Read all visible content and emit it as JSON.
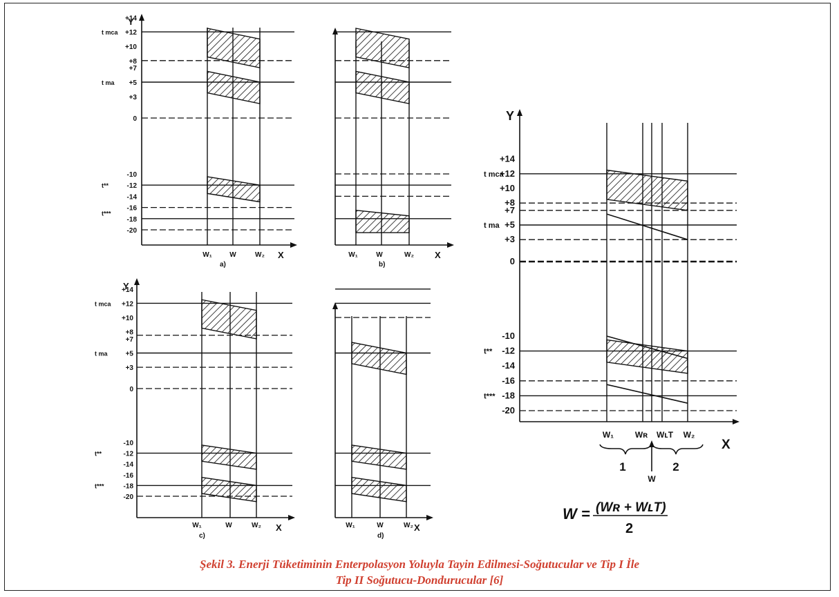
{
  "panels": [
    {
      "id": "a",
      "panel_label": "a)",
      "y_axis_label": "Y",
      "x_axis_label": "X",
      "y_ticks": [
        "+14",
        "+12",
        "+10",
        "+8",
        "+7",
        "+5",
        "+3",
        "0",
        "-10",
        "-12",
        "-14",
        "-16",
        "-18",
        "-20"
      ],
      "x_ticks": [
        "W₁",
        "W",
        "W₂"
      ],
      "level_labels": [
        "t mca",
        "t ma",
        "t**",
        "t***"
      ]
    },
    {
      "id": "b",
      "panel_label": "b)",
      "y_axis_label": "",
      "x_axis_label": "X",
      "y_ticks": [],
      "x_ticks": [
        "W₁",
        "W",
        "W₂"
      ],
      "level_labels": []
    },
    {
      "id": "c",
      "panel_label": "c)",
      "y_axis_label": "Y",
      "x_axis_label": "X",
      "y_ticks": [
        "+14",
        "+12",
        "+10",
        "+8",
        "+7",
        "+5",
        "+3",
        "0",
        "-10",
        "-12",
        "-14",
        "-16",
        "-18",
        "-20"
      ],
      "x_ticks": [
        "W₁",
        "W",
        "W₂"
      ],
      "level_labels": [
        "t mca",
        "t ma",
        "t**",
        "t***"
      ]
    },
    {
      "id": "d",
      "panel_label": "d)",
      "y_axis_label": "",
      "x_axis_label": "X",
      "y_ticks": [],
      "x_ticks": [
        "W₁",
        "W",
        "W₂"
      ],
      "level_labels": []
    },
    {
      "id": "e",
      "panel_label": "",
      "y_axis_label": "Y",
      "x_axis_label": "X",
      "y_ticks": [
        "+14",
        "+12",
        "+10",
        "+8",
        "+7",
        "+5",
        "+3",
        "0",
        "-10",
        "-12",
        "-14",
        "-16",
        "-18",
        "-20"
      ],
      "x_ticks": [
        "W₁",
        "Wʀ",
        "WʟT",
        "W₂"
      ],
      "level_labels": [
        "t mca",
        "t ma",
        "t**",
        "t***"
      ],
      "brace_labels": [
        "1",
        "2"
      ],
      "arrow_label": "W"
    }
  ],
  "formula": {
    "lhs": "W =",
    "numerator": "(Wʀ + WʟT)",
    "denominator": "2"
  },
  "caption": {
    "line1": "Şekil 3. Enerji Tüketiminin Enterpolasyon Yoluyla Tayin Edilmesi-Soğutucular ve Tip I İle",
    "line2": "Tip II Soğutucu-Dondurucular [6]"
  },
  "colors": {
    "caption": "#d04030",
    "ink": "#111111"
  }
}
